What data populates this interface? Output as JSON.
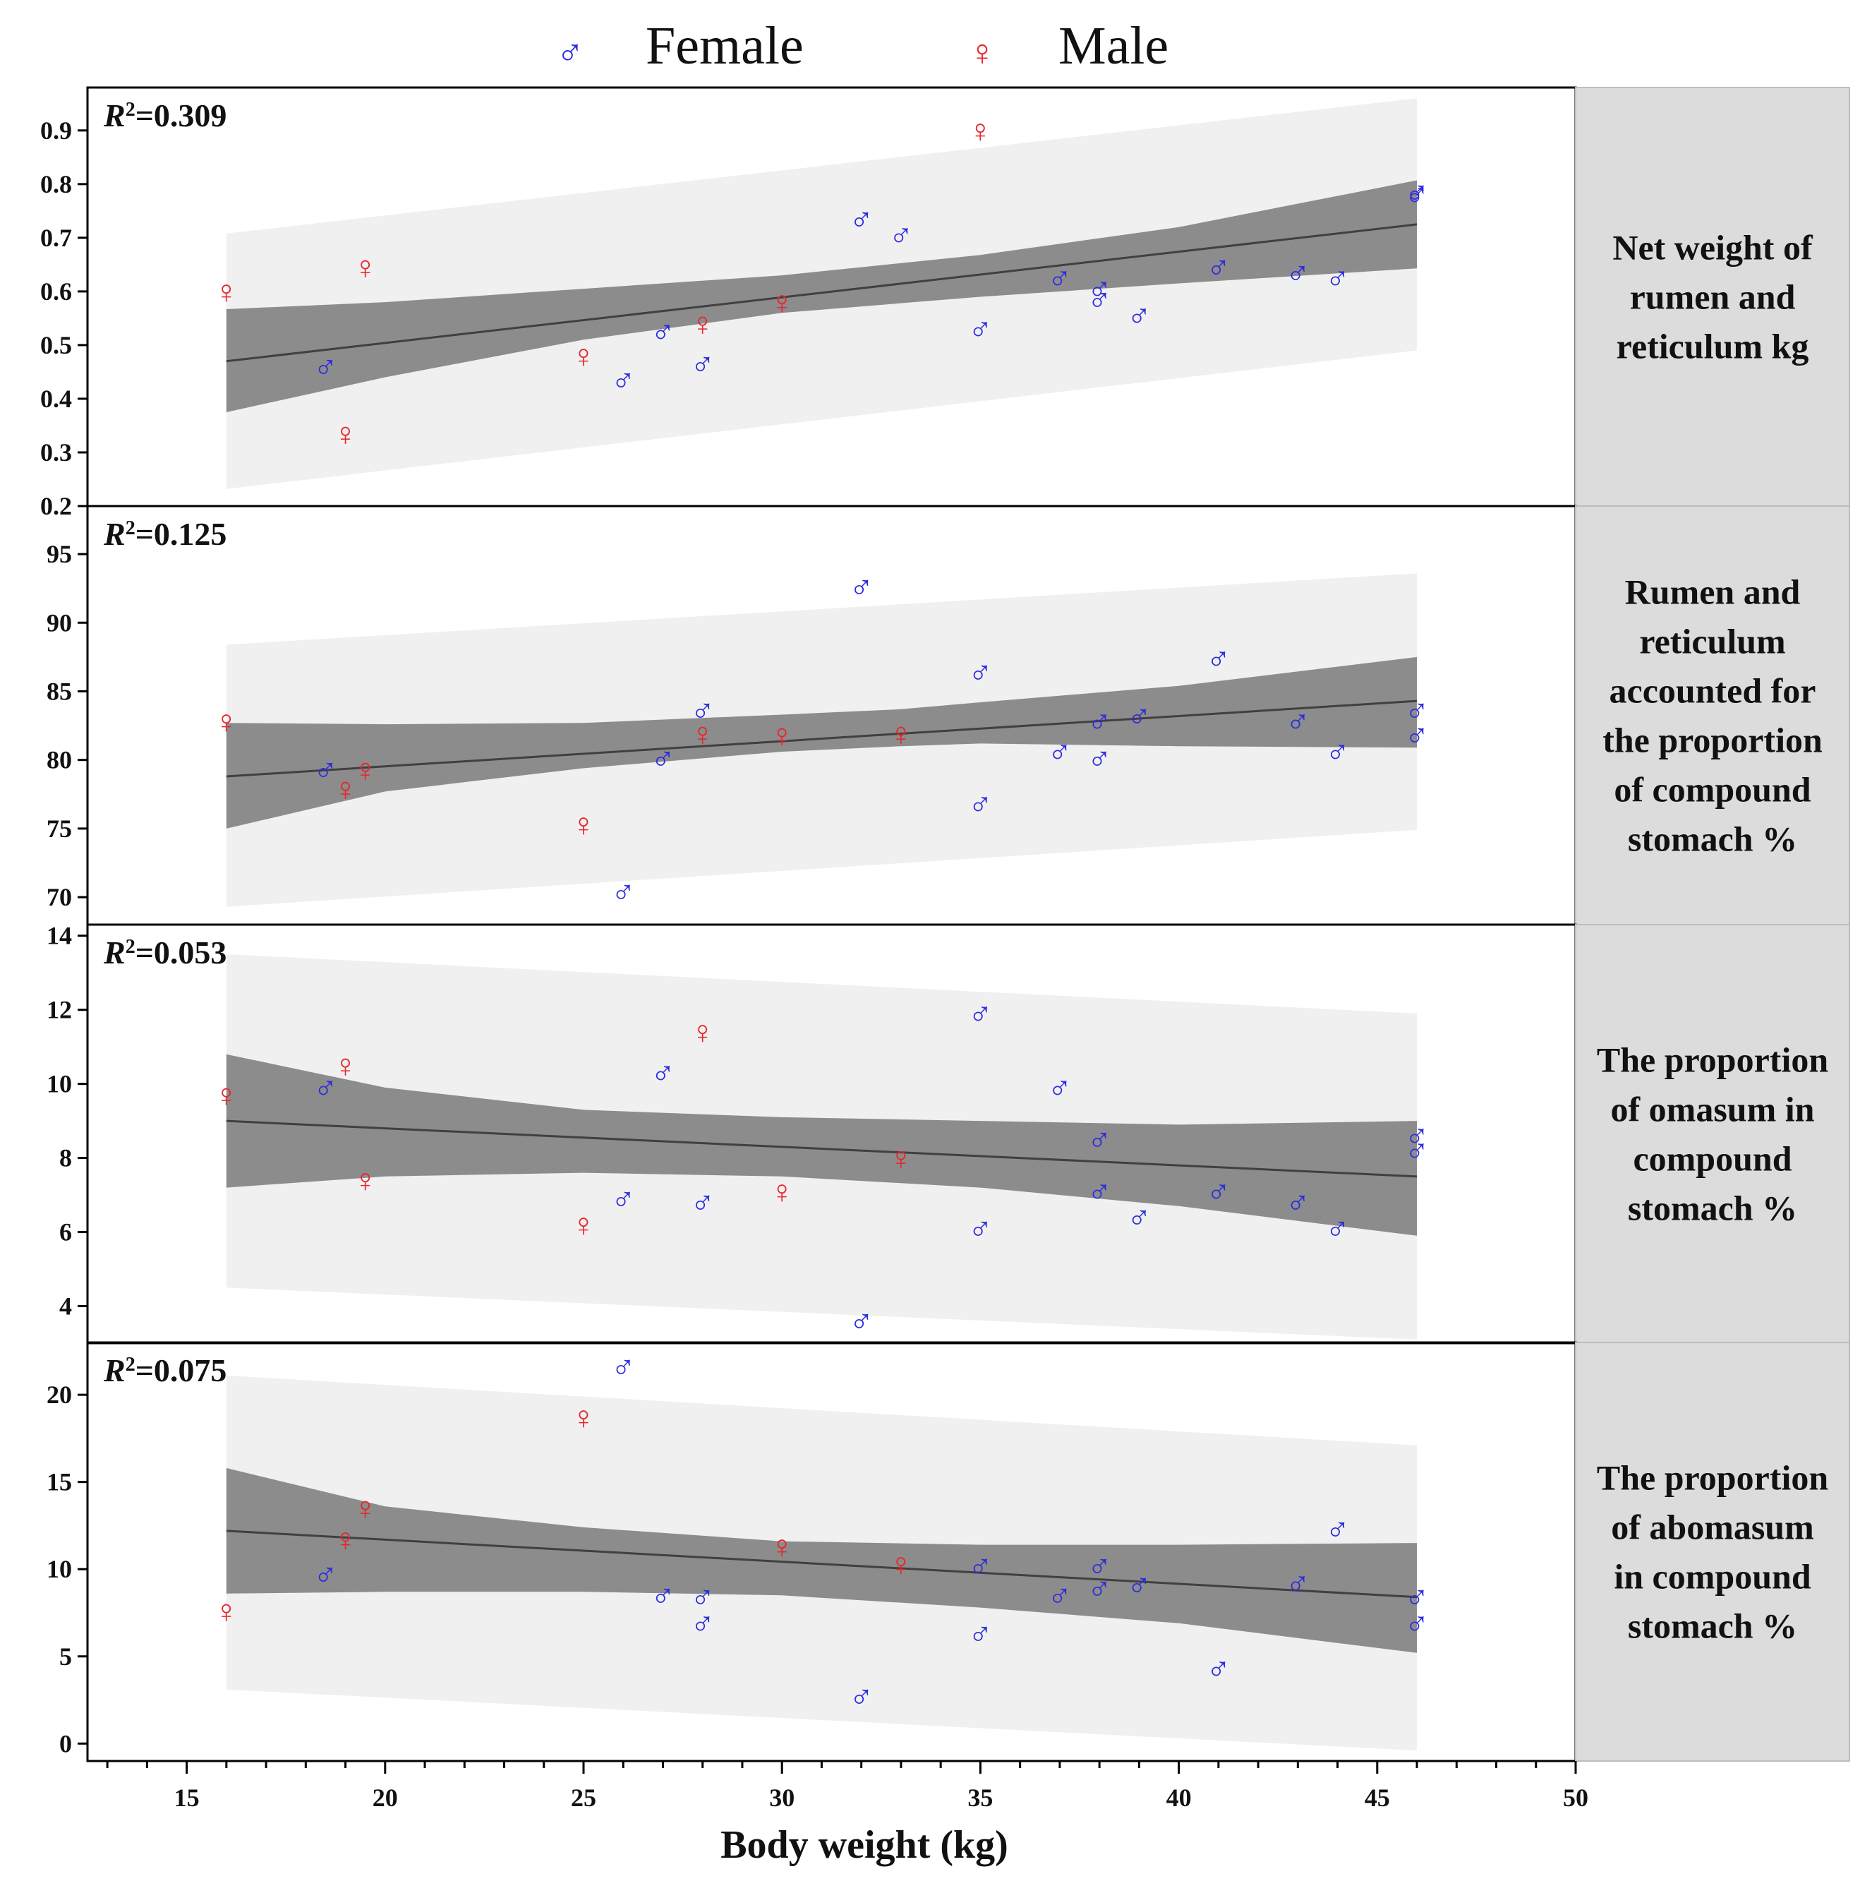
{
  "legend": {
    "items": [
      {
        "label": "Female",
        "symbol": "♂",
        "color": "#2b2be0"
      },
      {
        "label": "Male",
        "symbol": "♀",
        "color": "#e8262b"
      }
    ]
  },
  "colors": {
    "female": "#2b2be0",
    "male": "#e8262b",
    "ci_band": "#8c8c8c",
    "pi_band": "#f0f0f0",
    "fit_line": "#404040",
    "facet_strip": "#dcdcdc"
  },
  "chart_data": {
    "type": "scatter",
    "title": "",
    "xlabel": "Body weight (kg)",
    "xlim": [
      12.5,
      50
    ],
    "xticks": [
      15,
      20,
      25,
      30,
      35,
      40,
      45,
      50
    ],
    "legend_position": "top",
    "panels": [
      {
        "strip_label": [
          "Net weight of",
          "rumen and",
          "reticulum kg"
        ],
        "r2_prefix": "R",
        "r2_exp": "2",
        "r2_value": "=0.309",
        "ylim": [
          0.2,
          0.98
        ],
        "yticks": [
          0.2,
          0.3,
          0.4,
          0.5,
          0.6,
          0.7,
          0.8,
          0.9
        ],
        "fit": {
          "x": [
            16,
            46
          ],
          "y": [
            0.47,
            0.725
          ]
        },
        "ci": {
          "x": [
            16,
            20,
            25,
            30,
            35,
            40,
            46
          ],
          "lower": [
            0.375,
            0.44,
            0.51,
            0.56,
            0.59,
            0.615,
            0.643
          ],
          "upper": [
            0.567,
            0.58,
            0.605,
            0.63,
            0.668,
            0.72,
            0.807
          ]
        },
        "pi": {
          "x": [
            16,
            46
          ],
          "lower": [
            0.232,
            0.49
          ],
          "upper": [
            0.708,
            0.96
          ]
        },
        "female": {
          "x": [
            18.5,
            26,
            27,
            28,
            32,
            33,
            35,
            37,
            38,
            38,
            39,
            41,
            43,
            44,
            46,
            46
          ],
          "y": [
            0.46,
            0.435,
            0.525,
            0.465,
            0.735,
            0.705,
            0.53,
            0.625,
            0.605,
            0.585,
            0.555,
            0.645,
            0.635,
            0.625,
            0.785,
            0.78
          ]
        },
        "male": {
          "x": [
            16,
            19,
            19.5,
            25,
            28,
            30,
            35
          ],
          "y": [
            0.6,
            0.335,
            0.645,
            0.48,
            0.54,
            0.58,
            0.9
          ]
        }
      },
      {
        "strip_label": [
          "Rumen and",
          "reticulum",
          "accounted for",
          "the proportion",
          "of compound",
          "stomach %"
        ],
        "r2_prefix": "R",
        "r2_exp": "2",
        "r2_value": "=0.125",
        "ylim": [
          68,
          98.5
        ],
        "yticks": [
          70,
          75,
          80,
          85,
          90,
          95
        ],
        "fit": {
          "x": [
            16,
            46
          ],
          "y": [
            78.8,
            84.3
          ]
        },
        "ci": {
          "x": [
            16,
            20,
            25,
            30,
            33,
            35,
            40,
            46
          ],
          "lower": [
            75.0,
            77.7,
            79.4,
            80.6,
            81.0,
            81.2,
            81.0,
            80.9
          ],
          "upper": [
            82.7,
            82.6,
            82.7,
            83.3,
            83.7,
            84.2,
            85.4,
            87.5
          ]
        },
        "pi": {
          "x": [
            16,
            46
          ],
          "lower": [
            69.3,
            74.9
          ],
          "upper": [
            88.4,
            93.6
          ]
        },
        "female": {
          "x": [
            18.5,
            26,
            27,
            28,
            32,
            35,
            35,
            37,
            38,
            38,
            39,
            41,
            43,
            44,
            46,
            46
          ],
          "y": [
            79.3,
            70.4,
            80.1,
            83.6,
            92.6,
            86.4,
            76.8,
            80.6,
            82.8,
            80.1,
            83.2,
            87.4,
            82.8,
            80.6,
            83.6,
            81.8
          ]
        },
        "male": {
          "x": [
            16,
            19,
            19.5,
            25,
            28,
            30,
            33
          ],
          "y": [
            82.8,
            77.9,
            79.3,
            75.3,
            81.9,
            81.8,
            81.9
          ]
        }
      },
      {
        "strip_label": [
          "The proportion",
          "of omasum in",
          "compound",
          "stomach %"
        ],
        "r2_prefix": "R",
        "r2_exp": "2",
        "r2_value": "=0.053",
        "ylim": [
          3.0,
          14.3
        ],
        "yticks": [
          4,
          6,
          8,
          10,
          12,
          14
        ],
        "fit": {
          "x": [
            16,
            46
          ],
          "y": [
            9.0,
            7.5
          ]
        },
        "ci": {
          "x": [
            16,
            20,
            25,
            30,
            35,
            40,
            46
          ],
          "lower": [
            7.2,
            7.5,
            7.6,
            7.5,
            7.2,
            6.7,
            5.9
          ],
          "upper": [
            10.8,
            9.9,
            9.3,
            9.1,
            9.0,
            8.9,
            9.0
          ]
        },
        "pi": {
          "x": [
            16,
            46
          ],
          "lower": [
            4.5,
            3.1
          ],
          "upper": [
            13.5,
            11.9
          ]
        },
        "female": {
          "x": [
            18.5,
            26,
            27,
            28,
            32,
            35,
            35,
            37,
            38,
            38,
            39,
            41,
            43,
            44,
            46,
            46
          ],
          "y": [
            9.9,
            6.9,
            10.3,
            6.8,
            3.6,
            11.9,
            6.1,
            9.9,
            8.5,
            7.1,
            6.4,
            7.1,
            6.8,
            6.1,
            8.6,
            8.2
          ]
        },
        "male": {
          "x": [
            16,
            19,
            19.5,
            25,
            28,
            30,
            33
          ],
          "y": [
            9.7,
            10.5,
            7.4,
            6.2,
            11.4,
            7.1,
            8.0
          ]
        }
      },
      {
        "strip_label": [
          "The proportion",
          "of abomasum",
          "in compound",
          "stomach %"
        ],
        "r2_prefix": "R",
        "r2_exp": "2",
        "r2_value": "=0.075",
        "ylim": [
          -1.0,
          23.0
        ],
        "yticks": [
          0,
          5,
          10,
          15,
          20
        ],
        "fit": {
          "x": [
            16,
            46
          ],
          "y": [
            12.2,
            8.4
          ]
        },
        "ci": {
          "x": [
            16,
            20,
            25,
            30,
            35,
            40,
            46
          ],
          "lower": [
            8.6,
            8.7,
            8.7,
            8.5,
            7.8,
            6.9,
            5.2
          ],
          "upper": [
            15.8,
            13.6,
            12.4,
            11.6,
            11.4,
            11.4,
            11.5
          ]
        },
        "pi": {
          "x": [
            16,
            46
          ],
          "lower": [
            3.1,
            -0.4
          ],
          "upper": [
            21.1,
            17.1
          ]
        },
        "female": {
          "x": [
            18.5,
            26,
            27,
            28,
            28,
            32,
            35,
            35,
            37,
            38,
            38,
            39,
            41,
            43,
            44,
            46,
            46
          ],
          "y": [
            9.7,
            21.6,
            8.5,
            8.4,
            6.9,
            2.7,
            10.2,
            6.3,
            8.5,
            10.2,
            8.9,
            9.1,
            4.3,
            9.2,
            12.3,
            8.4,
            6.9
          ]
        },
        "male": {
          "x": [
            16,
            19,
            19.5,
            25,
            30,
            33
          ],
          "y": [
            7.6,
            11.7,
            13.5,
            18.7,
            11.3,
            10.3
          ]
        }
      }
    ]
  }
}
